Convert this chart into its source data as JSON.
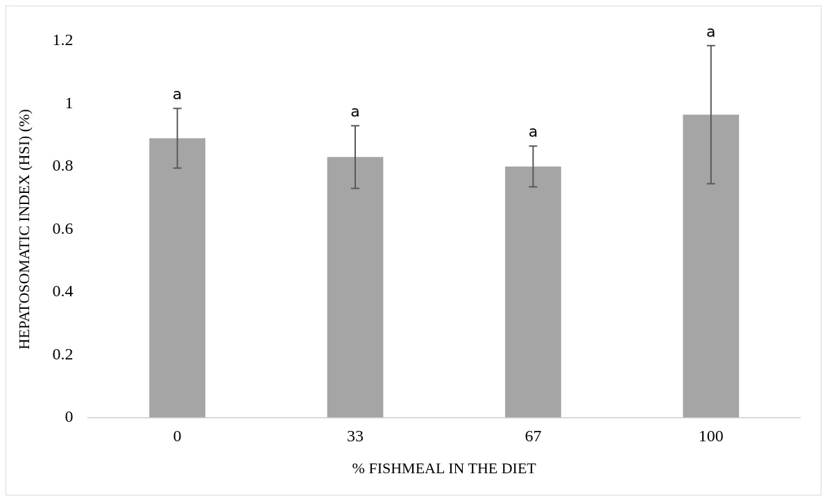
{
  "chart_data": {
    "type": "bar",
    "xlabel": "% FISHMEAL IN THE DIET",
    "ylabel": "HEPATOSOMATIC INDEX (HSI) (%)",
    "categories": [
      "0",
      "33",
      "67",
      "100"
    ],
    "values": [
      0.89,
      0.83,
      0.8,
      0.965
    ],
    "errors": [
      0.095,
      0.1,
      0.065,
      0.22
    ],
    "color": "#a5a5a5",
    "ylim": [
      0,
      1.2
    ],
    "yticks": [
      0,
      0.2,
      0.4,
      0.6,
      0.8,
      1,
      1.2
    ],
    "grid": false,
    "annotations": [
      {
        "text": "a",
        "x": "0",
        "y": 0.985
      },
      {
        "text": "a",
        "x": "33",
        "y": 0.93
      },
      {
        "text": "a",
        "x": "67",
        "y": 0.865
      },
      {
        "text": "a",
        "x": "100",
        "y": 1.185
      }
    ]
  }
}
